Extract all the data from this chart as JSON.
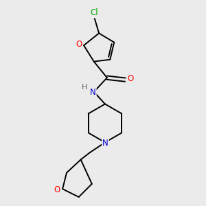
{
  "background_color": "#ebebeb",
  "bond_color": "#000000",
  "atom_colors": {
    "Cl": "#00aa00",
    "O": "#ff0000",
    "N": "#0000cc",
    "H": "#606060"
  },
  "figsize": [
    3.0,
    3.0
  ],
  "dpi": 100,
  "bond_lw": 1.4,
  "font_size": 8.5
}
